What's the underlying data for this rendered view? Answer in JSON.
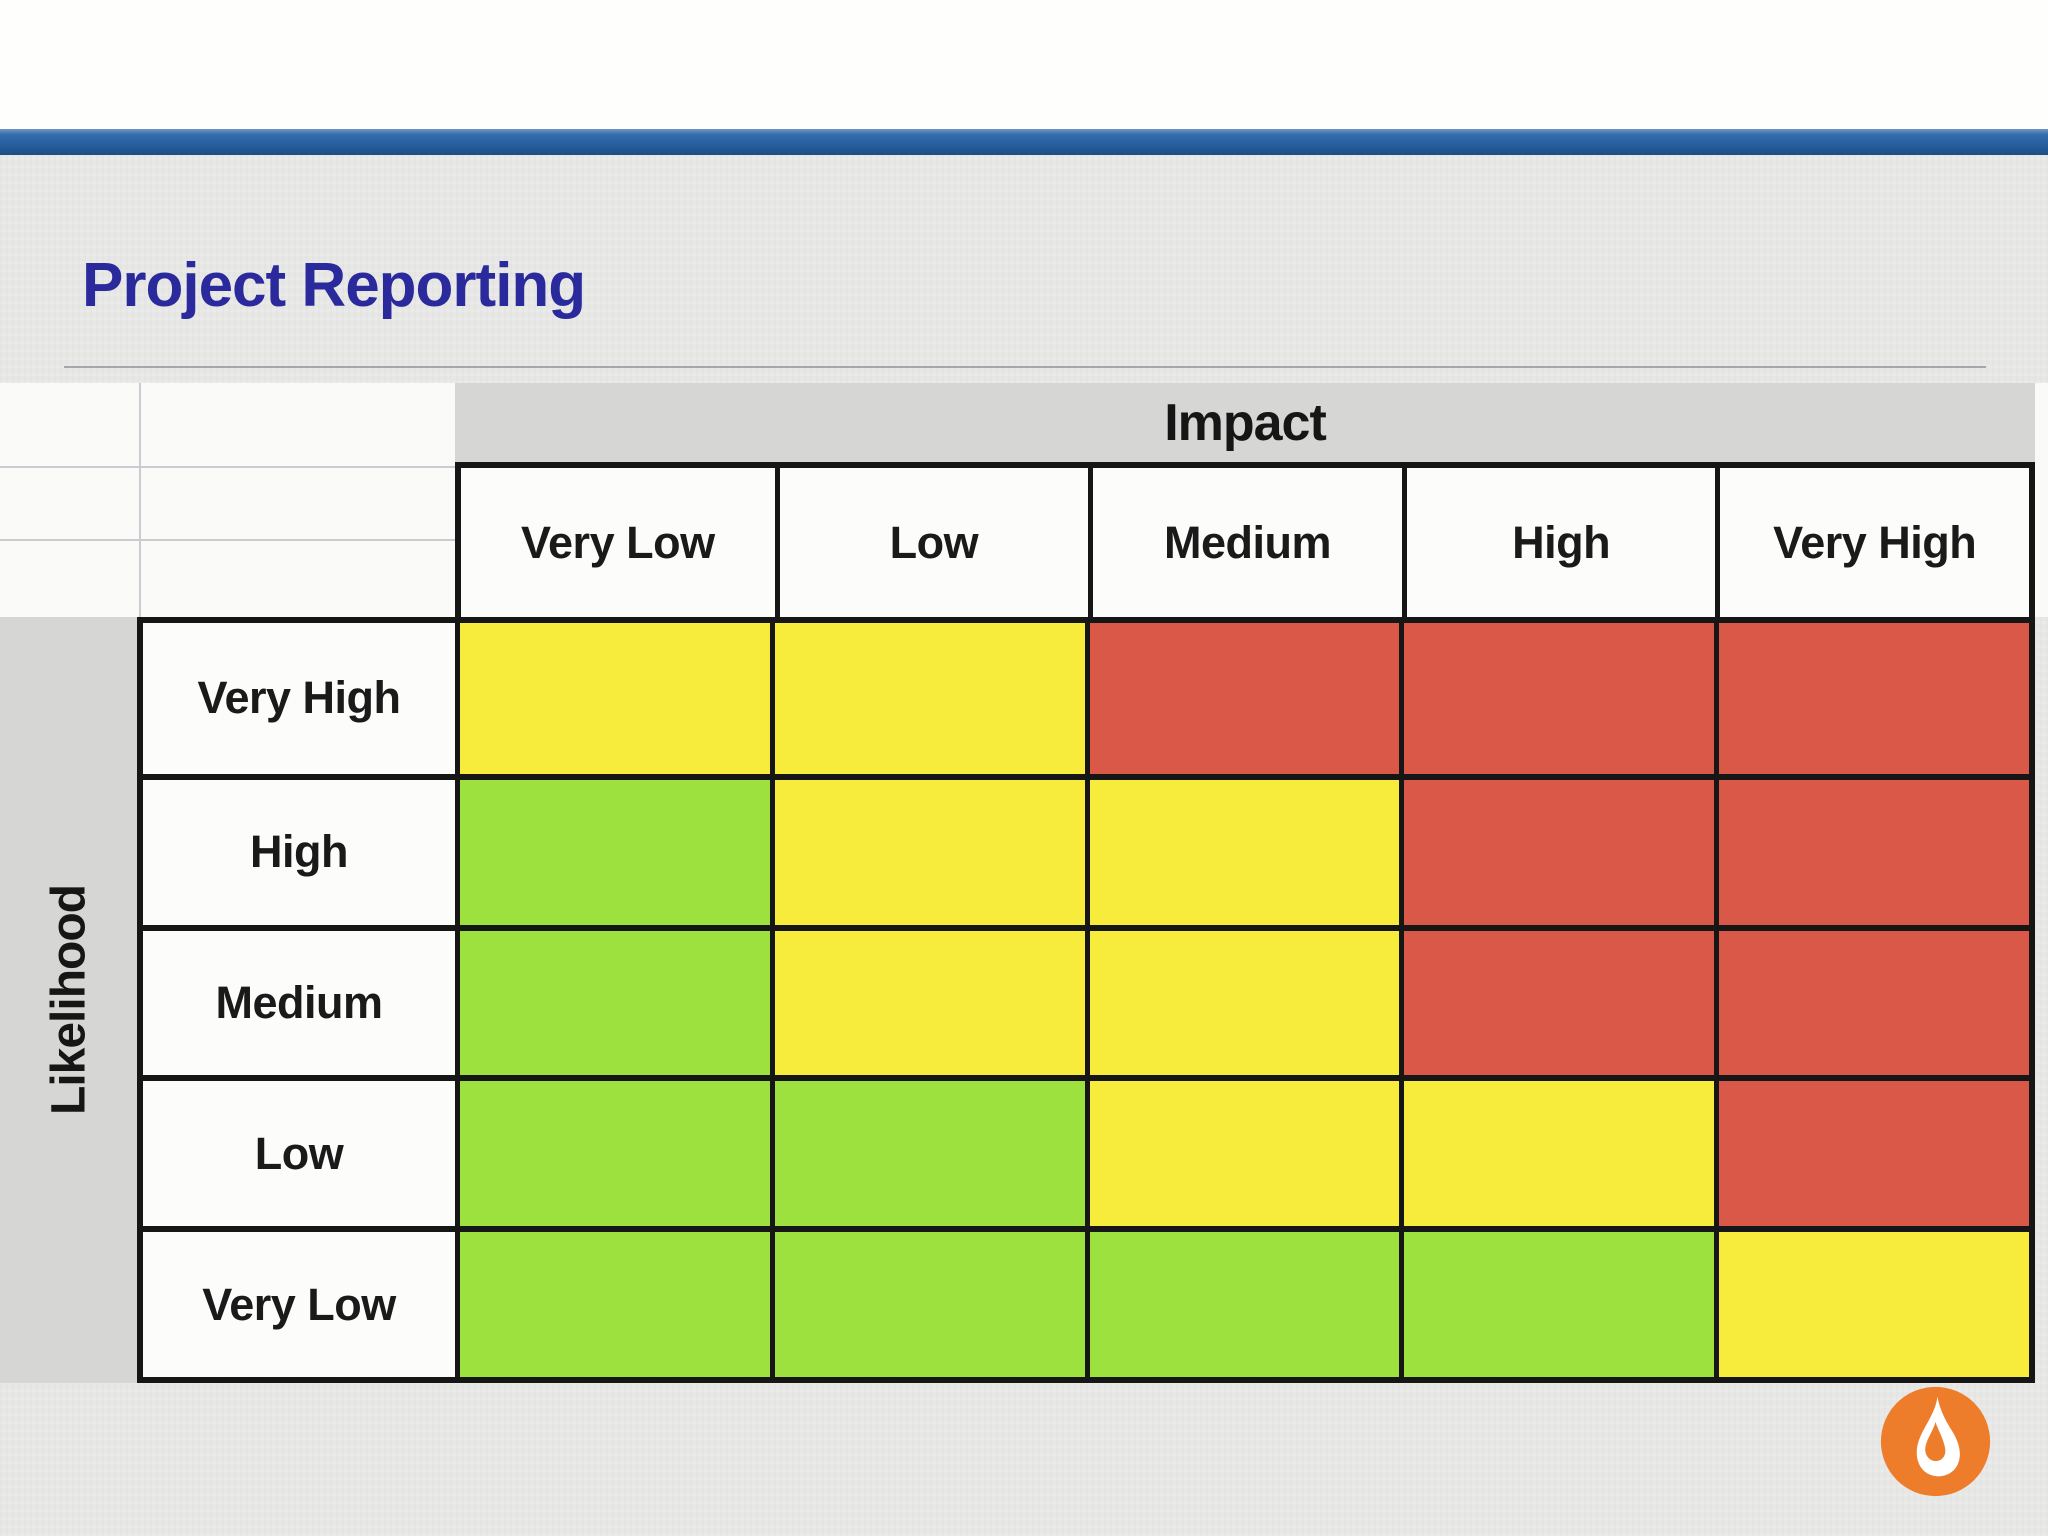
{
  "header_bar": {
    "color": "#27619F"
  },
  "title": {
    "text": "Project Reporting",
    "color": "#2A2A9C"
  },
  "logo": {
    "icon": "flame-drop-icon",
    "circle_color": "#ED7D2B",
    "glyph_color": "#FFFFFF"
  },
  "chart_data": {
    "type": "heatmap",
    "title": "Project Reporting",
    "x_axis_label": "Impact",
    "y_axis_label": "Likelihood",
    "x_categories": [
      "Very Low",
      "Low",
      "Medium",
      "High",
      "Very High"
    ],
    "y_categories": [
      "Very High",
      "High",
      "Medium",
      "Low",
      "Very Low"
    ],
    "cells": [
      [
        "yellow",
        "yellow",
        "red",
        "red",
        "red"
      ],
      [
        "green",
        "yellow",
        "yellow",
        "red",
        "red"
      ],
      [
        "green",
        "yellow",
        "yellow",
        "red",
        "red"
      ],
      [
        "green",
        "green",
        "yellow",
        "yellow",
        "red"
      ],
      [
        "green",
        "green",
        "green",
        "green",
        "yellow"
      ]
    ],
    "cell_colors": {
      "green": "#9CE13D",
      "yellow": "#F7EB3C",
      "red": "#D95847"
    },
    "band_color": "#D6D6D4",
    "grid_border_color": "#161616",
    "legend_position": "none",
    "grid": true
  }
}
